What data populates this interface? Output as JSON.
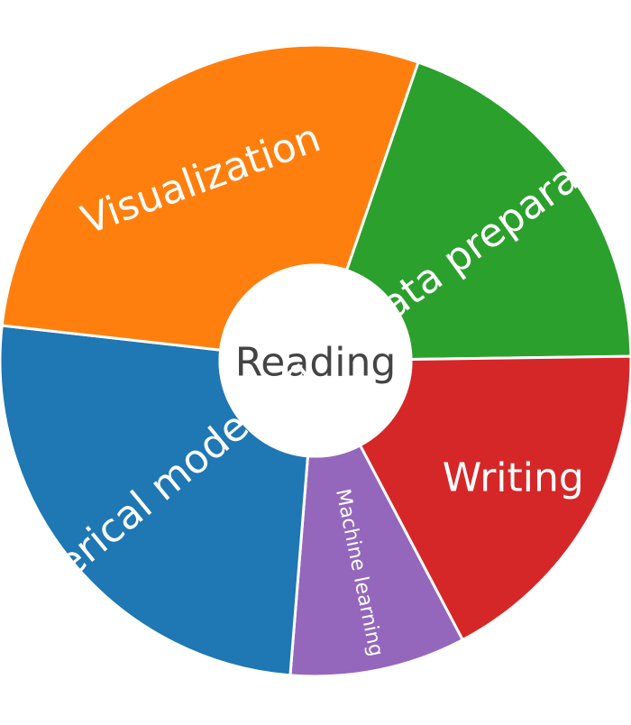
{
  "chart_data": {
    "type": "pie",
    "subtype": "sunburst",
    "center_label": "Reading",
    "series": [
      {
        "label": "Data preparation",
        "value": 19.5,
        "color": "#2ca02c"
      },
      {
        "label": "Writing",
        "value": 17.5,
        "color": "#d62728"
      },
      {
        "label": "Machine learning",
        "value": 9.0,
        "color": "#9467bd"
      },
      {
        "label": "Numerical modelling",
        "value": 25.5,
        "color": "#1f77b4"
      },
      {
        "label": "Visualization",
        "value": 28.5,
        "color": "#ff7f0e"
      }
    ],
    "center_color": "#ffffff",
    "text_color_outer": "#ffffff",
    "text_color_center": "#444444"
  }
}
